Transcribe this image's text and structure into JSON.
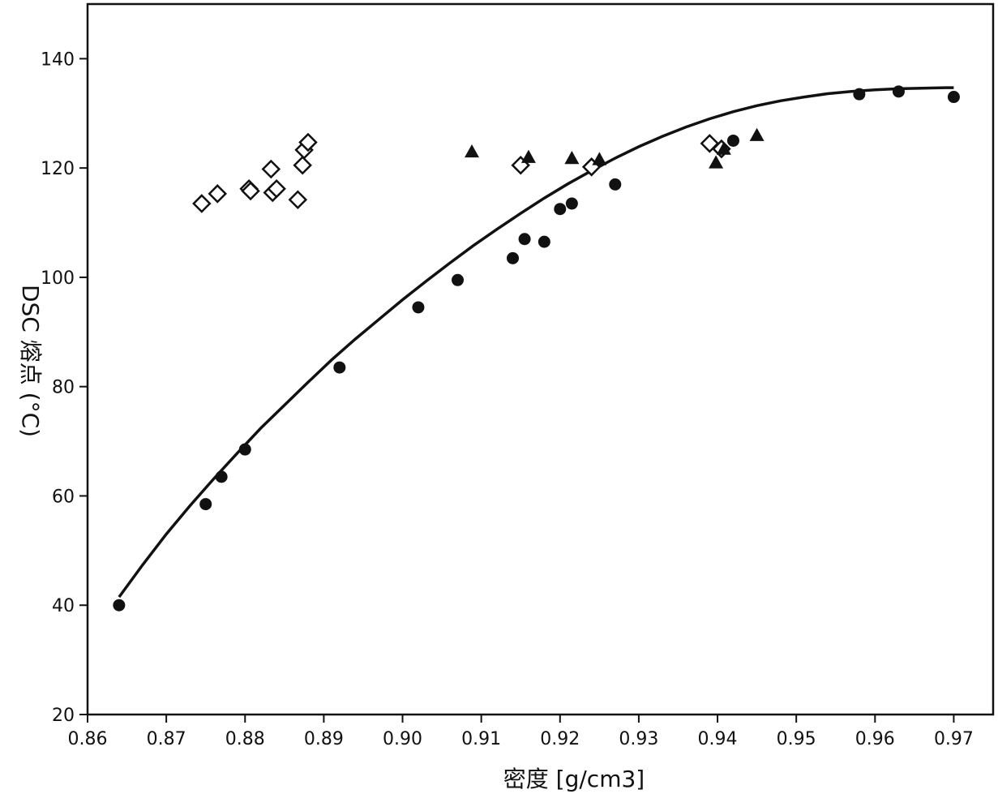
{
  "chart_data": {
    "type": "scatter",
    "xlabel": "密度 [g/cm3]",
    "ylabel": "DSC 熔点 (°C)",
    "xlim": [
      0.86,
      0.975
    ],
    "ylim": [
      20,
      150
    ],
    "x_ticks": [
      "0.86",
      "0.87",
      "0.88",
      "0.89",
      "0.90",
      "0.91",
      "0.92",
      "0.93",
      "0.94",
      "0.95",
      "0.96",
      "0.97"
    ],
    "x_tick_values": [
      0.86,
      0.87,
      0.88,
      0.89,
      0.9,
      0.91,
      0.92,
      0.93,
      0.94,
      0.95,
      0.96,
      0.97
    ],
    "y_ticks": [
      "20",
      "40",
      "60",
      "80",
      "100",
      "120",
      "140"
    ],
    "y_tick_values": [
      20,
      40,
      60,
      80,
      100,
      120,
      140
    ],
    "grid": false,
    "series": [
      {
        "marker": "filled-circle",
        "x": [
          0.864,
          0.875,
          0.877,
          0.88,
          0.892,
          0.902,
          0.907,
          0.914,
          0.9155,
          0.918,
          0.92,
          0.9215,
          0.927,
          0.942,
          0.958,
          0.963,
          0.97
        ],
        "y": [
          40,
          58.5,
          63.5,
          68.5,
          83.5,
          94.5,
          99.5,
          103.5,
          107,
          106.5,
          112.5,
          113.5,
          117,
          125,
          133.5,
          134,
          133
        ]
      },
      {
        "marker": "open-diamond",
        "x": [
          0.8745,
          0.8765,
          0.8805,
          0.8807,
          0.8833,
          0.8835,
          0.884,
          0.8867,
          0.8873,
          0.8875,
          0.888,
          0.915,
          0.924,
          0.939,
          0.9405
        ],
        "y": [
          113.5,
          115.3,
          116.2,
          115.8,
          119.8,
          115.5,
          116.2,
          114.2,
          120.5,
          123.3,
          124.7,
          120.5,
          120.2,
          124.5,
          123.5
        ]
      },
      {
        "marker": "filled-triangle",
        "x": [
          0.9088,
          0.916,
          0.9215,
          0.925,
          0.9398,
          0.9408,
          0.945
        ],
        "y": [
          123,
          122,
          121.8,
          121.6,
          121,
          123.5,
          126
        ]
      },
      {
        "marker": "line",
        "x": [
          0.864,
          0.867,
          0.87,
          0.873,
          0.876,
          0.879,
          0.882,
          0.885,
          0.888,
          0.891,
          0.894,
          0.897,
          0.9,
          0.903,
          0.906,
          0.909,
          0.912,
          0.915,
          0.918,
          0.921,
          0.924,
          0.927,
          0.93,
          0.933,
          0.936,
          0.939,
          0.942,
          0.945,
          0.948,
          0.951,
          0.954,
          0.957,
          0.96,
          0.963,
          0.966,
          0.969,
          0.97
        ],
        "y": [
          41.5,
          47.4,
          53.0,
          58.2,
          63.1,
          67.8,
          72.4,
          76.6,
          80.8,
          84.9,
          88.7,
          92.3,
          95.9,
          99.3,
          102.6,
          105.8,
          108.8,
          111.7,
          114.5,
          117.1,
          119.5,
          121.8,
          123.9,
          125.8,
          127.5,
          129.0,
          130.3,
          131.4,
          132.3,
          133.0,
          133.6,
          134.0,
          134.3,
          134.5,
          134.6,
          134.7,
          134.7
        ]
      }
    ],
    "colors": {
      "ink": "#111111",
      "background": "#ffffff"
    }
  }
}
